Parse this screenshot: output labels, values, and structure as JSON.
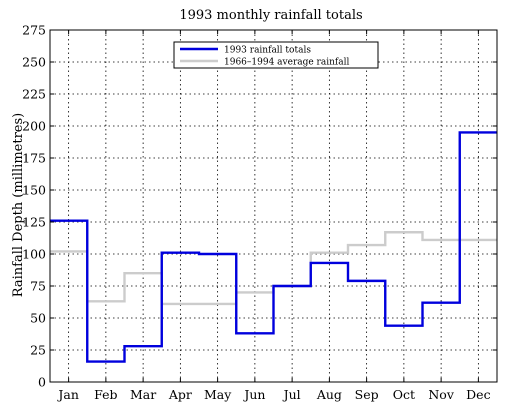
{
  "chart_data": {
    "type": "line",
    "step": true,
    "title": "1993 monthly rainfall totals",
    "xlabel": "",
    "ylabel": "Rainfall Depth (millimetres)",
    "categories": [
      "Jan",
      "Feb",
      "Mar",
      "Apr",
      "May",
      "Jun",
      "Jul",
      "Aug",
      "Sep",
      "Oct",
      "Nov",
      "Dec"
    ],
    "ylim": [
      0,
      275
    ],
    "yticks": [
      0,
      25,
      50,
      75,
      100,
      125,
      150,
      175,
      200,
      225,
      250,
      275
    ],
    "grid": true,
    "legend_position": "top-center",
    "series": [
      {
        "name": "1993 rainfall totals",
        "color": "#0000dd",
        "values": [
          126,
          16,
          28,
          101,
          100,
          38,
          75,
          93,
          79,
          44,
          62,
          195
        ]
      },
      {
        "name": "1966–1994 average rainfall",
        "color": "#cccccc",
        "values": [
          102,
          63,
          85,
          61,
          61,
          70,
          75,
          101,
          107,
          117,
          111,
          111
        ]
      }
    ]
  }
}
